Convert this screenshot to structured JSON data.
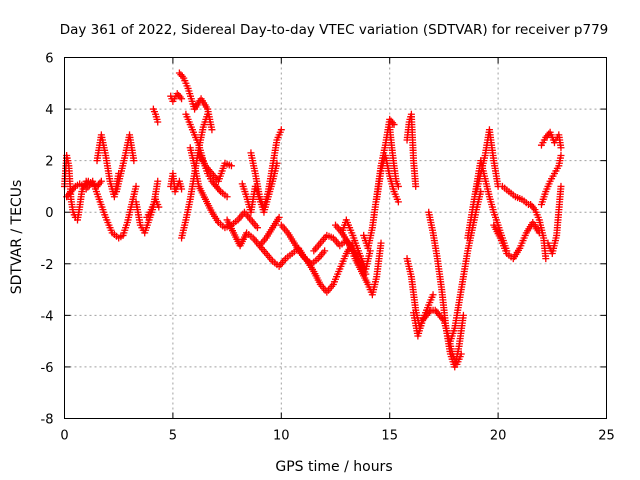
{
  "chart_data": {
    "type": "scatter",
    "title": "Day 361 of 2022, Sidereal Day-to-day VTEC variation (SDTVAR) for receiver p779",
    "xlabel": "GPS time / hours",
    "ylabel": "SDTVAR / TECUs",
    "xlim": [
      0,
      25
    ],
    "ylim": [
      -8,
      6
    ],
    "x_ticks": [
      0,
      5,
      10,
      15,
      20,
      25
    ],
    "y_ticks": [
      -8,
      -6,
      -4,
      -2,
      0,
      2,
      4,
      6
    ],
    "grid": true,
    "marker": "plus",
    "series": [
      {
        "name": "SDTVAR",
        "color": "#ff0000",
        "segments": [
          {
            "x": [
              0.0,
              0.1,
              0.2,
              0.3,
              0.4,
              0.5,
              0.6,
              0.7,
              0.8,
              1.0
            ],
            "y": [
              1.0,
              2.2,
              1.8,
              0.5,
              0.0,
              -0.2,
              -0.3,
              0.2,
              0.8,
              1.2
            ]
          },
          {
            "x": [
              0.1,
              0.3,
              0.5,
              0.7,
              0.9,
              1.1,
              1.3,
              1.5,
              1.7
            ],
            "y": [
              0.6,
              0.8,
              1.0,
              1.1,
              1.0,
              1.2,
              1.1,
              1.0,
              1.2
            ]
          },
          {
            "x": [
              1.0,
              1.3,
              1.6,
              1.9,
              2.2,
              2.5,
              2.7,
              2.9,
              3.1,
              3.3
            ],
            "y": [
              0.9,
              1.2,
              0.5,
              -0.2,
              -0.8,
              -1.0,
              -0.9,
              -0.4,
              0.3,
              1.0
            ]
          },
          {
            "x": [
              1.5,
              1.7,
              1.9,
              2.1,
              2.3,
              2.5
            ],
            "y": [
              2.0,
              3.0,
              2.2,
              1.2,
              0.6,
              1.5
            ]
          },
          {
            "x": [
              2.4,
              2.6,
              2.8,
              3.0,
              3.2
            ],
            "y": [
              0.8,
              1.5,
              2.2,
              3.0,
              2.0
            ]
          },
          {
            "x": [
              3.3,
              3.5,
              3.7,
              3.9,
              4.1,
              4.3
            ],
            "y": [
              0.4,
              -0.5,
              -0.8,
              -0.3,
              0.2,
              1.2
            ]
          },
          {
            "x": [
              3.8,
              4.0,
              4.2,
              4.35
            ],
            "y": [
              -0.2,
              0.1,
              0.5,
              0.2
            ]
          },
          {
            "x": [
              4.1,
              4.2,
              4.3
            ],
            "y": [
              4.0,
              3.8,
              3.5
            ]
          },
          {
            "x": [
              4.9,
              5.0,
              5.1,
              5.3,
              5.4
            ],
            "y": [
              1.0,
              1.5,
              0.8,
              1.2,
              0.9
            ]
          },
          {
            "x": [
              4.9,
              5.0,
              5.2,
              5.4
            ],
            "y": [
              4.5,
              4.3,
              4.6,
              4.4
            ]
          },
          {
            "x": [
              5.3,
              5.5,
              5.7,
              6.0,
              6.3,
              6.6,
              6.8
            ],
            "y": [
              5.4,
              5.2,
              4.8,
              4.0,
              4.4,
              4.0,
              3.2
            ]
          },
          {
            "x": [
              5.6,
              5.8,
              6.0,
              6.2,
              6.4,
              6.6,
              6.8,
              7.0,
              7.2,
              7.5
            ],
            "y": [
              3.8,
              3.4,
              3.0,
              2.6,
              2.0,
              1.5,
              1.2,
              1.0,
              0.8,
              0.6
            ]
          },
          {
            "x": [
              5.4,
              5.6,
              5.8,
              6.0,
              6.2,
              6.4,
              6.6
            ],
            "y": [
              -1.0,
              -0.3,
              0.5,
              1.5,
              2.5,
              3.3,
              3.8
            ]
          },
          {
            "x": [
              5.8,
              6.0,
              6.2,
              6.5,
              6.8,
              7.1,
              7.4,
              7.7,
              8.0,
              8.3,
              8.6,
              8.9
            ],
            "y": [
              2.5,
              1.8,
              1.0,
              0.5,
              0.0,
              -0.4,
              -0.6,
              -0.5,
              -0.3,
              0.0,
              -0.3,
              -0.6
            ]
          },
          {
            "x": [
              6.2,
              6.5,
              6.8,
              7.1,
              7.4,
              7.7
            ],
            "y": [
              2.3,
              1.8,
              1.5,
              1.2,
              1.9,
              1.8
            ]
          },
          {
            "x": [
              7.5,
              7.8,
              8.1,
              8.4,
              8.7,
              9.0,
              9.3,
              9.6,
              9.9
            ],
            "y": [
              -0.3,
              -0.8,
              -1.3,
              -0.8,
              -1.0,
              -1.3,
              -1.0,
              -0.6,
              -0.2
            ]
          },
          {
            "x": [
              8.2,
              8.4,
              8.6,
              8.8,
              9.0,
              9.2,
              9.4,
              9.6,
              9.8
            ],
            "y": [
              1.1,
              0.6,
              0.0,
              1.0,
              0.5,
              0.0,
              0.6,
              1.2,
              1.9
            ]
          },
          {
            "x": [
              8.6,
              8.8,
              9.0,
              9.2,
              9.4,
              9.6,
              9.8,
              10.0
            ],
            "y": [
              2.3,
              1.5,
              0.6,
              0.2,
              0.8,
              1.8,
              2.8,
              3.2
            ]
          },
          {
            "x": [
              9.0,
              9.3,
              9.6,
              9.9,
              10.2,
              10.5,
              10.8,
              11.1,
              11.4,
              11.7,
              12.0
            ],
            "y": [
              -1.3,
              -1.6,
              -1.9,
              -2.1,
              -1.8,
              -1.6,
              -1.4,
              -1.8,
              -2.0,
              -1.8,
              -1.5
            ]
          },
          {
            "x": [
              10.0,
              10.3,
              10.6,
              10.9,
              11.2,
              11.5,
              11.8,
              12.1,
              12.4,
              12.7,
              13.0,
              13.3
            ],
            "y": [
              -0.5,
              -0.8,
              -1.2,
              -1.6,
              -1.9,
              -2.3,
              -2.8,
              -3.1,
              -2.8,
              -2.2,
              -1.6,
              -1.2
            ]
          },
          {
            "x": [
              11.5,
              11.8,
              12.1,
              12.4,
              12.7,
              13.0,
              13.3,
              13.6,
              13.9
            ],
            "y": [
              -1.5,
              -1.2,
              -0.9,
              -1.0,
              -1.3,
              -1.1,
              -1.4,
              -1.9,
              -2.4
            ]
          },
          {
            "x": [
              12.5,
              12.8,
              13.1,
              13.4,
              13.7,
              14.0,
              14.2,
              14.4,
              14.6
            ],
            "y": [
              -0.5,
              -0.8,
              -1.2,
              -1.8,
              -2.3,
              -2.8,
              -3.2,
              -2.5,
              -1.2
            ]
          },
          {
            "x": [
              12.8,
              13.0,
              13.3,
              13.6,
              13.9,
              14.1
            ],
            "y": [
              -0.8,
              -0.3,
              -0.9,
              -1.6,
              -2.2,
              -1.5
            ]
          },
          {
            "x": [
              13.8,
              14.0,
              14.2,
              14.4,
              14.6,
              14.8,
              15.0,
              15.2
            ],
            "y": [
              -0.9,
              -1.4,
              -0.6,
              0.6,
              1.8,
              2.6,
              3.6,
              3.4
            ]
          },
          {
            "x": [
              14.4,
              14.6,
              14.8,
              15.0,
              15.2,
              15.4
            ],
            "y": [
              0.5,
              1.6,
              2.2,
              1.4,
              0.8,
              0.4
            ]
          },
          {
            "x": [
              15.0,
              15.1,
              15.2,
              15.3,
              15.4
            ],
            "y": [
              3.3,
              2.5,
              1.8,
              1.2,
              1.0
            ]
          },
          {
            "x": [
              15.8,
              15.9,
              16.0,
              16.1,
              16.2
            ],
            "y": [
              2.8,
              3.5,
              3.8,
              2.0,
              1.0
            ]
          },
          {
            "x": [
              15.8,
              16.0,
              16.2,
              16.4,
              16.6,
              16.8,
              17.0
            ],
            "y": [
              -1.8,
              -2.5,
              -3.8,
              -4.5,
              -4.0,
              -3.6,
              -3.2
            ]
          },
          {
            "x": [
              16.1,
              16.3,
              16.5,
              16.7,
              16.9,
              17.1,
              17.3,
              17.5,
              17.7,
              17.9,
              18.1,
              18.3
            ],
            "y": [
              -3.9,
              -4.8,
              -4.2,
              -4.0,
              -3.8,
              -3.8,
              -4.0,
              -4.2,
              -4.8,
              -5.5,
              -5.9,
              -5.5
            ]
          },
          {
            "x": [
              16.8,
              17.0,
              17.2,
              17.4,
              17.6,
              17.8,
              18.0,
              18.2,
              18.4
            ],
            "y": [
              0.0,
              -0.8,
              -1.8,
              -3.0,
              -4.5,
              -5.5,
              -6.0,
              -5.2,
              -4.0
            ]
          },
          {
            "x": [
              17.8,
              18.0,
              18.2,
              18.4,
              18.6,
              18.8,
              19.0,
              19.2
            ],
            "y": [
              -5.0,
              -4.5,
              -3.5,
              -2.5,
              -1.5,
              -0.7,
              0.1,
              0.8
            ]
          },
          {
            "x": [
              18.6,
              18.8,
              19.0,
              19.2,
              19.4,
              19.6,
              19.8,
              20.0,
              20.2,
              20.4
            ],
            "y": [
              -1.0,
              0.0,
              1.0,
              2.0,
              1.3,
              0.6,
              0.0,
              -0.5,
              -1.0,
              -1.5
            ]
          },
          {
            "x": [
              19.0,
              19.2,
              19.4,
              19.6,
              19.8,
              20.0
            ],
            "y": [
              0.8,
              1.5,
              2.2,
              3.2,
              2.0,
              1.0
            ]
          },
          {
            "x": [
              19.8,
              20.1,
              20.4,
              20.7,
              21.0,
              21.3,
              21.6,
              21.9
            ],
            "y": [
              -0.5,
              -1.0,
              -1.6,
              -1.8,
              -1.4,
              -0.8,
              -0.4,
              -0.8
            ]
          },
          {
            "x": [
              20.2,
              20.5,
              20.8,
              21.1,
              21.4
            ],
            "y": [
              1.0,
              0.8,
              0.6,
              0.5,
              0.3
            ]
          },
          {
            "x": [
              21.5,
              21.7,
              21.9,
              22.1,
              22.2
            ],
            "y": [
              0.3,
              0.1,
              -0.3,
              -1.0,
              -1.8
            ]
          },
          {
            "x": [
              22.0,
              22.2,
              22.4,
              22.6,
              22.8,
              22.9
            ],
            "y": [
              2.6,
              2.9,
              3.1,
              2.7,
              3.0,
              2.5
            ]
          },
          {
            "x": [
              22.0,
              22.2,
              22.4,
              22.6,
              22.8,
              22.9
            ],
            "y": [
              0.3,
              0.8,
              1.2,
              1.5,
              1.8,
              2.2
            ]
          },
          {
            "x": [
              22.3,
              22.5,
              22.7,
              22.9
            ],
            "y": [
              -1.2,
              -1.6,
              -0.9,
              1.0
            ]
          }
        ]
      }
    ]
  }
}
